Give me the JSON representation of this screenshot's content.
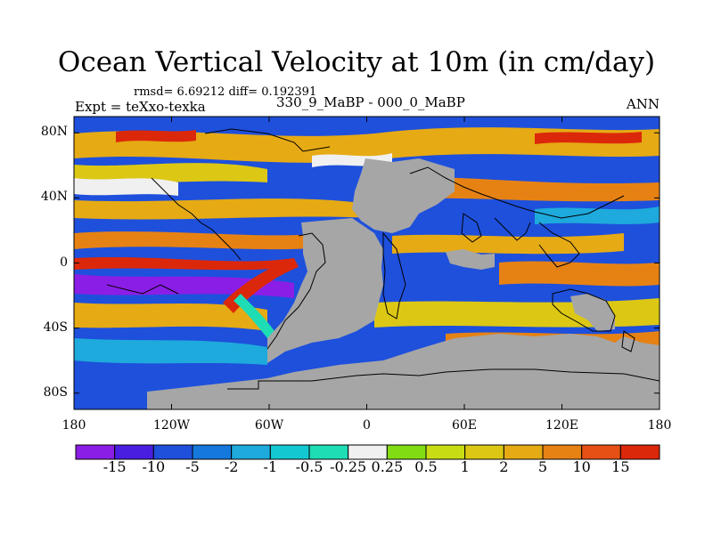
{
  "figure": {
    "title": "Ocean Vertical Velocity at 10m (in cm/day)",
    "stats": "rmsd= 6.69212 diff= 0.192391",
    "left_label": "Expt = teXxo-texka",
    "center_label": "330_9_MaBP - 000_0_MaBP",
    "right_label": "ANN"
  },
  "map": {
    "projection": "cylindrical-equidistant",
    "lon_range": [
      -180,
      180
    ],
    "lat_range": [
      -90,
      90
    ],
    "land_color": "#a6a6a6",
    "lat_ticks": [
      {
        "value": 80,
        "label": "80N"
      },
      {
        "value": 40,
        "label": "40N"
      },
      {
        "value": 0,
        "label": "0"
      },
      {
        "value": -40,
        "label": "40S"
      },
      {
        "value": -80,
        "label": "80S"
      }
    ],
    "lon_ticks": [
      {
        "value": -180,
        "label": "180"
      },
      {
        "value": -120,
        "label": "120W"
      },
      {
        "value": -60,
        "label": "60W"
      },
      {
        "value": 0,
        "label": "0"
      },
      {
        "value": 60,
        "label": "60E"
      },
      {
        "value": 120,
        "label": "120E"
      },
      {
        "value": 180,
        "label": "180"
      }
    ]
  },
  "colorbar": {
    "labels": [
      "-15",
      "-10",
      "-5",
      "-2",
      "-1",
      "-0.5",
      "-0.25",
      "0.25",
      "0.5",
      "1",
      "2",
      "5",
      "10",
      "15"
    ],
    "colors": [
      "#8b1ee6",
      "#4a1ee0",
      "#1e50dc",
      "#1478dc",
      "#1eaadc",
      "#14c8d2",
      "#1edcb4",
      "#f0f0f0",
      "#82dc14",
      "#c8dc14",
      "#dcc814",
      "#e6aa14",
      "#e68214",
      "#e65014",
      "#dc280a"
    ]
  }
}
